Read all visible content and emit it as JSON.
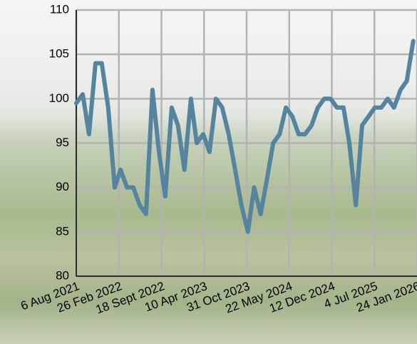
{
  "chart_data": {
    "type": "line",
    "x": [
      "2021-08-06",
      "2021-09-06",
      "2021-10-06",
      "2021-11-06",
      "2021-12-06",
      "2022-01-06",
      "2022-02-06",
      "2022-03-06",
      "2022-04-06",
      "2022-05-06",
      "2022-06-06",
      "2022-07-06",
      "2022-08-06",
      "2022-09-06",
      "2022-10-06",
      "2022-11-06",
      "2022-12-06",
      "2023-01-06",
      "2023-02-06",
      "2023-03-06",
      "2023-04-06",
      "2023-05-06",
      "2023-06-06",
      "2023-07-06",
      "2023-08-06",
      "2023-09-06",
      "2023-10-06",
      "2023-11-06",
      "2023-12-06",
      "2024-01-06",
      "2024-02-06",
      "2024-03-06",
      "2024-04-06",
      "2024-05-06",
      "2024-06-06",
      "2024-07-06",
      "2024-08-06",
      "2024-09-06",
      "2024-10-06",
      "2024-11-06",
      "2024-12-06",
      "2025-01-06",
      "2025-02-06",
      "2025-03-06",
      "2025-04-06",
      "2025-05-06",
      "2025-06-06",
      "2025-07-06",
      "2025-08-06",
      "2025-09-06",
      "2025-10-06",
      "2025-11-06",
      "2025-12-06",
      "2026-01-06"
    ],
    "series": [
      {
        "color": "#55849f",
        "values": [
          99.5,
          100.5,
          96,
          104,
          104,
          99,
          90,
          92,
          90,
          90,
          88,
          87,
          101,
          94,
          89,
          99,
          97,
          92,
          100,
          95,
          96,
          94,
          100,
          99,
          96,
          92,
          88,
          85,
          90,
          87,
          91,
          95,
          96,
          99,
          98,
          96,
          96,
          97,
          99,
          100,
          100,
          99,
          99,
          95,
          88,
          97,
          98,
          99,
          99,
          100,
          99,
          101,
          102,
          106.5
        ]
      }
    ],
    "xlim": [
      "2021-08-06",
      "2026-01-24"
    ],
    "xticks": [
      {
        "value": "2021-08-06",
        "label": "6 Aug 2021"
      },
      {
        "value": "2022-02-26",
        "label": "26 Feb 2022"
      },
      {
        "value": "2022-09-18",
        "label": "18 Sept 2022"
      },
      {
        "value": "2023-04-10",
        "label": "10 Apr 2023"
      },
      {
        "value": "2023-10-31",
        "label": "31 Oct 2023"
      },
      {
        "value": "2024-05-22",
        "label": "22 May 2024"
      },
      {
        "value": "2024-12-12",
        "label": "12 Dec 2024"
      },
      {
        "value": "2025-07-04",
        "label": "4 Jul 2025"
      },
      {
        "value": "2026-01-24",
        "label": "24 Jan 2026"
      }
    ],
    "ylim": [
      80,
      110
    ],
    "yticks": [
      80,
      85,
      90,
      95,
      100,
      105,
      110
    ],
    "grid": true
  }
}
